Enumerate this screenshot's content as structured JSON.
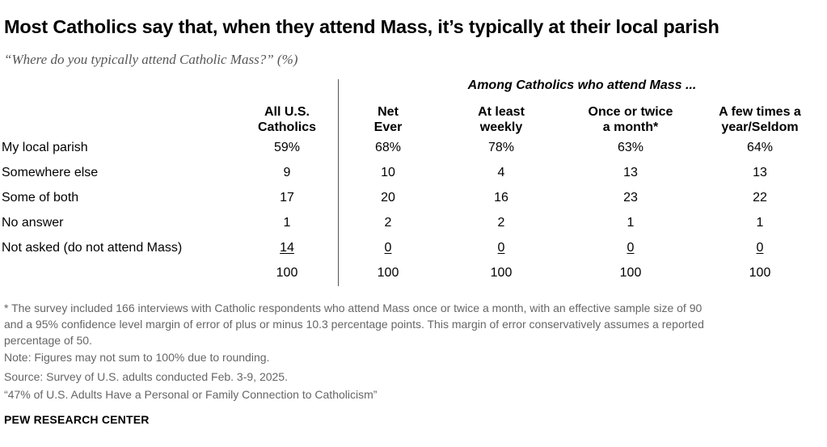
{
  "title": "Most Catholics say that, when they attend Mass, it’s typically at their local parish",
  "subtitle": "“Where do you typically attend Catholic Mass?” (%)",
  "chart_data": {
    "type": "table",
    "group_header": "Among Catholics who attend Mass ...",
    "columns": [
      {
        "line1": "All U.S.",
        "line2": "Catholics"
      },
      {
        "line1": "Net",
        "line2": "Ever"
      },
      {
        "line1": "At least",
        "line2": "weekly"
      },
      {
        "line1": "Once or twice",
        "line2": "a month*"
      },
      {
        "line1": "A few times a",
        "line2": "year/Seldom"
      }
    ],
    "rows": [
      {
        "label": "My local parish",
        "values": [
          "59%",
          "68%",
          "78%",
          "63%",
          "64%"
        ]
      },
      {
        "label": "Somewhere else",
        "values": [
          "9",
          "10",
          "4",
          "13",
          "13"
        ]
      },
      {
        "label": "Some of both",
        "values": [
          "17",
          "20",
          "16",
          "23",
          "22"
        ]
      },
      {
        "label": "No answer",
        "values": [
          "1",
          "2",
          "2",
          "1",
          "1"
        ]
      },
      {
        "label": "Not asked (do not attend Mass)",
        "values": [
          "14",
          "0",
          "0",
          "0",
          "0"
        ]
      },
      {
        "label": "",
        "values": [
          "100",
          "100",
          "100",
          "100",
          "100"
        ]
      }
    ]
  },
  "footnotes": {
    "asterisk_line1": "* The survey included 166 interviews with Catholic respondents who attend Mass once or twice a month, with an effective sample size of 90",
    "asterisk_line2": "and a 95% confidence level margin of error of plus or minus 10.3 percentage points. This margin of error conservatively assumes a reported",
    "asterisk_line3": "percentage of 50.",
    "note": "Note: Figures may not sum to 100% due to rounding.",
    "source": "Source: Survey of U.S. adults conducted Feb. 3-9, 2025.",
    "report": "“47% of U.S. Adults Have a Personal or Family Connection to Catholicism”"
  },
  "brand": "PEW RESEARCH CENTER"
}
